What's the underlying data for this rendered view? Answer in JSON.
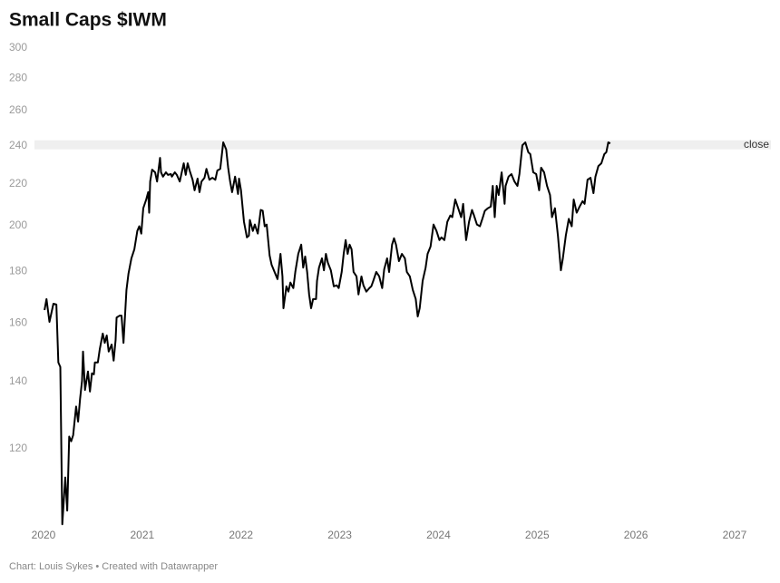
{
  "chart_data": {
    "type": "line",
    "title": "Small Caps $IWM",
    "credit": "Chart: Louis Sykes • Created with Datawrapper",
    "log_scale": true,
    "grid": false,
    "color": "#000000",
    "band": [
      238,
      243
    ],
    "band_color": "#efefef",
    "xlim": [
      2020,
      2027
    ],
    "xticks": [
      2020,
      2021,
      2022,
      2023,
      2024,
      2025,
      2026,
      2027
    ],
    "ylim": [
      100,
      300
    ],
    "yticks": [
      120,
      140,
      160,
      180,
      200,
      220,
      240,
      260,
      280,
      300
    ],
    "series": [
      {
        "name": "close",
        "color": "#000000",
        "x": [
          2020.01,
          2020.03,
          2020.06,
          2020.1,
          2020.13,
          2020.15,
          2020.17,
          2020.19,
          2020.22,
          2020.24,
          2020.26,
          2020.28,
          2020.3,
          2020.33,
          2020.35,
          2020.37,
          2020.39,
          2020.4,
          2020.42,
          2020.45,
          2020.47,
          2020.49,
          2020.51,
          2020.52,
          2020.55,
          2020.57,
          2020.6,
          2020.62,
          2020.64,
          2020.66,
          2020.69,
          2020.71,
          2020.73,
          2020.74,
          2020.77,
          2020.79,
          2020.81,
          2020.84,
          2020.86,
          2020.89,
          2020.92,
          2020.95,
          2020.97,
          2020.99,
          2021.01,
          2021.04,
          2021.06,
          2021.07,
          2021.08,
          2021.1,
          2021.13,
          2021.15,
          2021.18,
          2021.19,
          2021.21,
          2021.24,
          2021.26,
          2021.29,
          2021.3,
          2021.33,
          2021.35,
          2021.38,
          2021.4,
          2021.42,
          2021.44,
          2021.46,
          2021.48,
          2021.51,
          2021.53,
          2021.56,
          2021.58,
          2021.6,
          2021.63,
          2021.65,
          2021.68,
          2021.71,
          2021.74,
          2021.76,
          2021.79,
          2021.82,
          2021.85,
          2021.87,
          2021.89,
          2021.91,
          2021.94,
          2021.97,
          2021.98,
          2022.0,
          2022.03,
          2022.06,
          2022.08,
          2022.09,
          2022.12,
          2022.14,
          2022.17,
          2022.2,
          2022.22,
          2022.24,
          2022.26,
          2022.29,
          2022.31,
          2022.34,
          2022.37,
          2022.4,
          2022.42,
          2022.43,
          2022.46,
          2022.48,
          2022.5,
          2022.53,
          2022.55,
          2022.58,
          2022.61,
          2022.63,
          2022.65,
          2022.67,
          2022.69,
          2022.71,
          2022.73,
          2022.76,
          2022.77,
          2022.79,
          2022.82,
          2022.84,
          2022.86,
          2022.88,
          2022.91,
          2022.94,
          2022.97,
          2022.99,
          2023.02,
          2023.04,
          2023.06,
          2023.08,
          2023.1,
          2023.12,
          2023.14,
          2023.17,
          2023.19,
          2023.22,
          2023.24,
          2023.27,
          2023.3,
          2023.32,
          2023.34,
          2023.37,
          2023.4,
          2023.43,
          2023.45,
          2023.48,
          2023.5,
          2023.53,
          2023.55,
          2023.57,
          2023.6,
          2023.63,
          2023.66,
          2023.68,
          2023.71,
          2023.74,
          2023.77,
          2023.79,
          2023.81,
          2023.84,
          2023.87,
          2023.89,
          2023.92,
          2023.95,
          2023.98,
          2024.01,
          2024.03,
          2024.06,
          2024.09,
          2024.12,
          2024.14,
          2024.17,
          2024.2,
          2024.23,
          2024.25,
          2024.28,
          2024.31,
          2024.34,
          2024.36,
          2024.39,
          2024.42,
          2024.45,
          2024.47,
          2024.5,
          2024.53,
          2024.55,
          2024.57,
          2024.59,
          2024.61,
          2024.64,
          2024.67,
          2024.68,
          2024.71,
          2024.74,
          2024.77,
          2024.8,
          2024.82,
          2024.85,
          2024.88,
          2024.91,
          2024.93,
          2024.96,
          2024.99,
          2025.02,
          2025.04,
          2025.07,
          2025.1,
          2025.13,
          2025.15,
          2025.18,
          2025.21,
          2025.24,
          2025.26,
          2025.29,
          2025.32,
          2025.35,
          2025.37,
          2025.4,
          2025.43,
          2025.46,
          2025.48,
          2025.51,
          2025.54,
          2025.57,
          2025.59,
          2025.62,
          2025.65,
          2025.68,
          2025.7,
          2025.72,
          2025.74
        ],
        "values": [
          164.8,
          169.0,
          160.4,
          167.2,
          166.9,
          146.2,
          144.7,
          101.0,
          112.4,
          104.2,
          123.4,
          122.1,
          123.8,
          132.2,
          127.7,
          134.5,
          140.2,
          149.9,
          137.3,
          143.2,
          136.8,
          142.6,
          142.3,
          146.2,
          146.2,
          150.8,
          156.2,
          152.9,
          155.5,
          149.9,
          152.3,
          146.8,
          153.9,
          162.0,
          162.7,
          162.7,
          152.9,
          172.6,
          179.0,
          185.5,
          189.4,
          197.5,
          199.6,
          196.3,
          208.0,
          212.2,
          215.8,
          205.9,
          221.1,
          227.2,
          225.8,
          221.1,
          233.4,
          225.8,
          223.6,
          225.8,
          224.5,
          224.9,
          223.6,
          225.8,
          224.5,
          221.1,
          225.8,
          230.5,
          224.5,
          230.5,
          226.7,
          222.0,
          216.7,
          222.6,
          215.8,
          221.1,
          223.0,
          227.6,
          222.0,
          223.0,
          222.0,
          226.7,
          227.6,
          241.8,
          237.9,
          228.2,
          221.1,
          215.8,
          223.6,
          214.9,
          222.6,
          216.7,
          201.7,
          194.6,
          195.4,
          202.5,
          197.5,
          200.4,
          196.3,
          207.2,
          206.8,
          199.6,
          200.4,
          186.7,
          182.8,
          179.8,
          176.9,
          187.4,
          178.0,
          165.5,
          174.0,
          171.9,
          175.5,
          173.3,
          179.8,
          187.4,
          191.4,
          181.6,
          186.3,
          179.8,
          170.8,
          165.5,
          169.0,
          169.0,
          176.2,
          181.6,
          185.5,
          180.5,
          187.4,
          183.6,
          180.5,
          174.0,
          174.4,
          173.3,
          179.8,
          187.4,
          193.4,
          187.4,
          191.4,
          189.4,
          179.8,
          178.0,
          170.8,
          178.0,
          174.4,
          171.9,
          173.3,
          174.0,
          176.2,
          179.8,
          178.0,
          173.3,
          180.8,
          185.5,
          179.8,
          191.4,
          194.2,
          191.4,
          184.3,
          187.4,
          185.5,
          179.8,
          178.0,
          172.6,
          169.0,
          162.4,
          165.5,
          176.2,
          181.6,
          187.4,
          190.6,
          200.4,
          197.5,
          193.4,
          194.6,
          193.4,
          201.7,
          204.6,
          203.8,
          212.2,
          208.0,
          203.8,
          210.1,
          193.4,
          201.7,
          207.2,
          204.6,
          200.4,
          199.6,
          203.8,
          206.8,
          208.0,
          208.8,
          218.9,
          203.8,
          218.9,
          214.4,
          225.8,
          210.1,
          218.9,
          223.6,
          224.9,
          221.1,
          218.9,
          224.9,
          240.2,
          241.8,
          236.4,
          235.4,
          225.8,
          224.9,
          216.7,
          228.2,
          225.8,
          218.9,
          214.4,
          203.8,
          208.0,
          195.4,
          180.5,
          185.5,
          195.4,
          203.0,
          199.6,
          212.2,
          205.9,
          208.8,
          211.4,
          210.1,
          222.0,
          223.0,
          215.3,
          223.6,
          229.1,
          230.5,
          235.4,
          236.4,
          241.8,
          241.3
        ]
      }
    ]
  }
}
